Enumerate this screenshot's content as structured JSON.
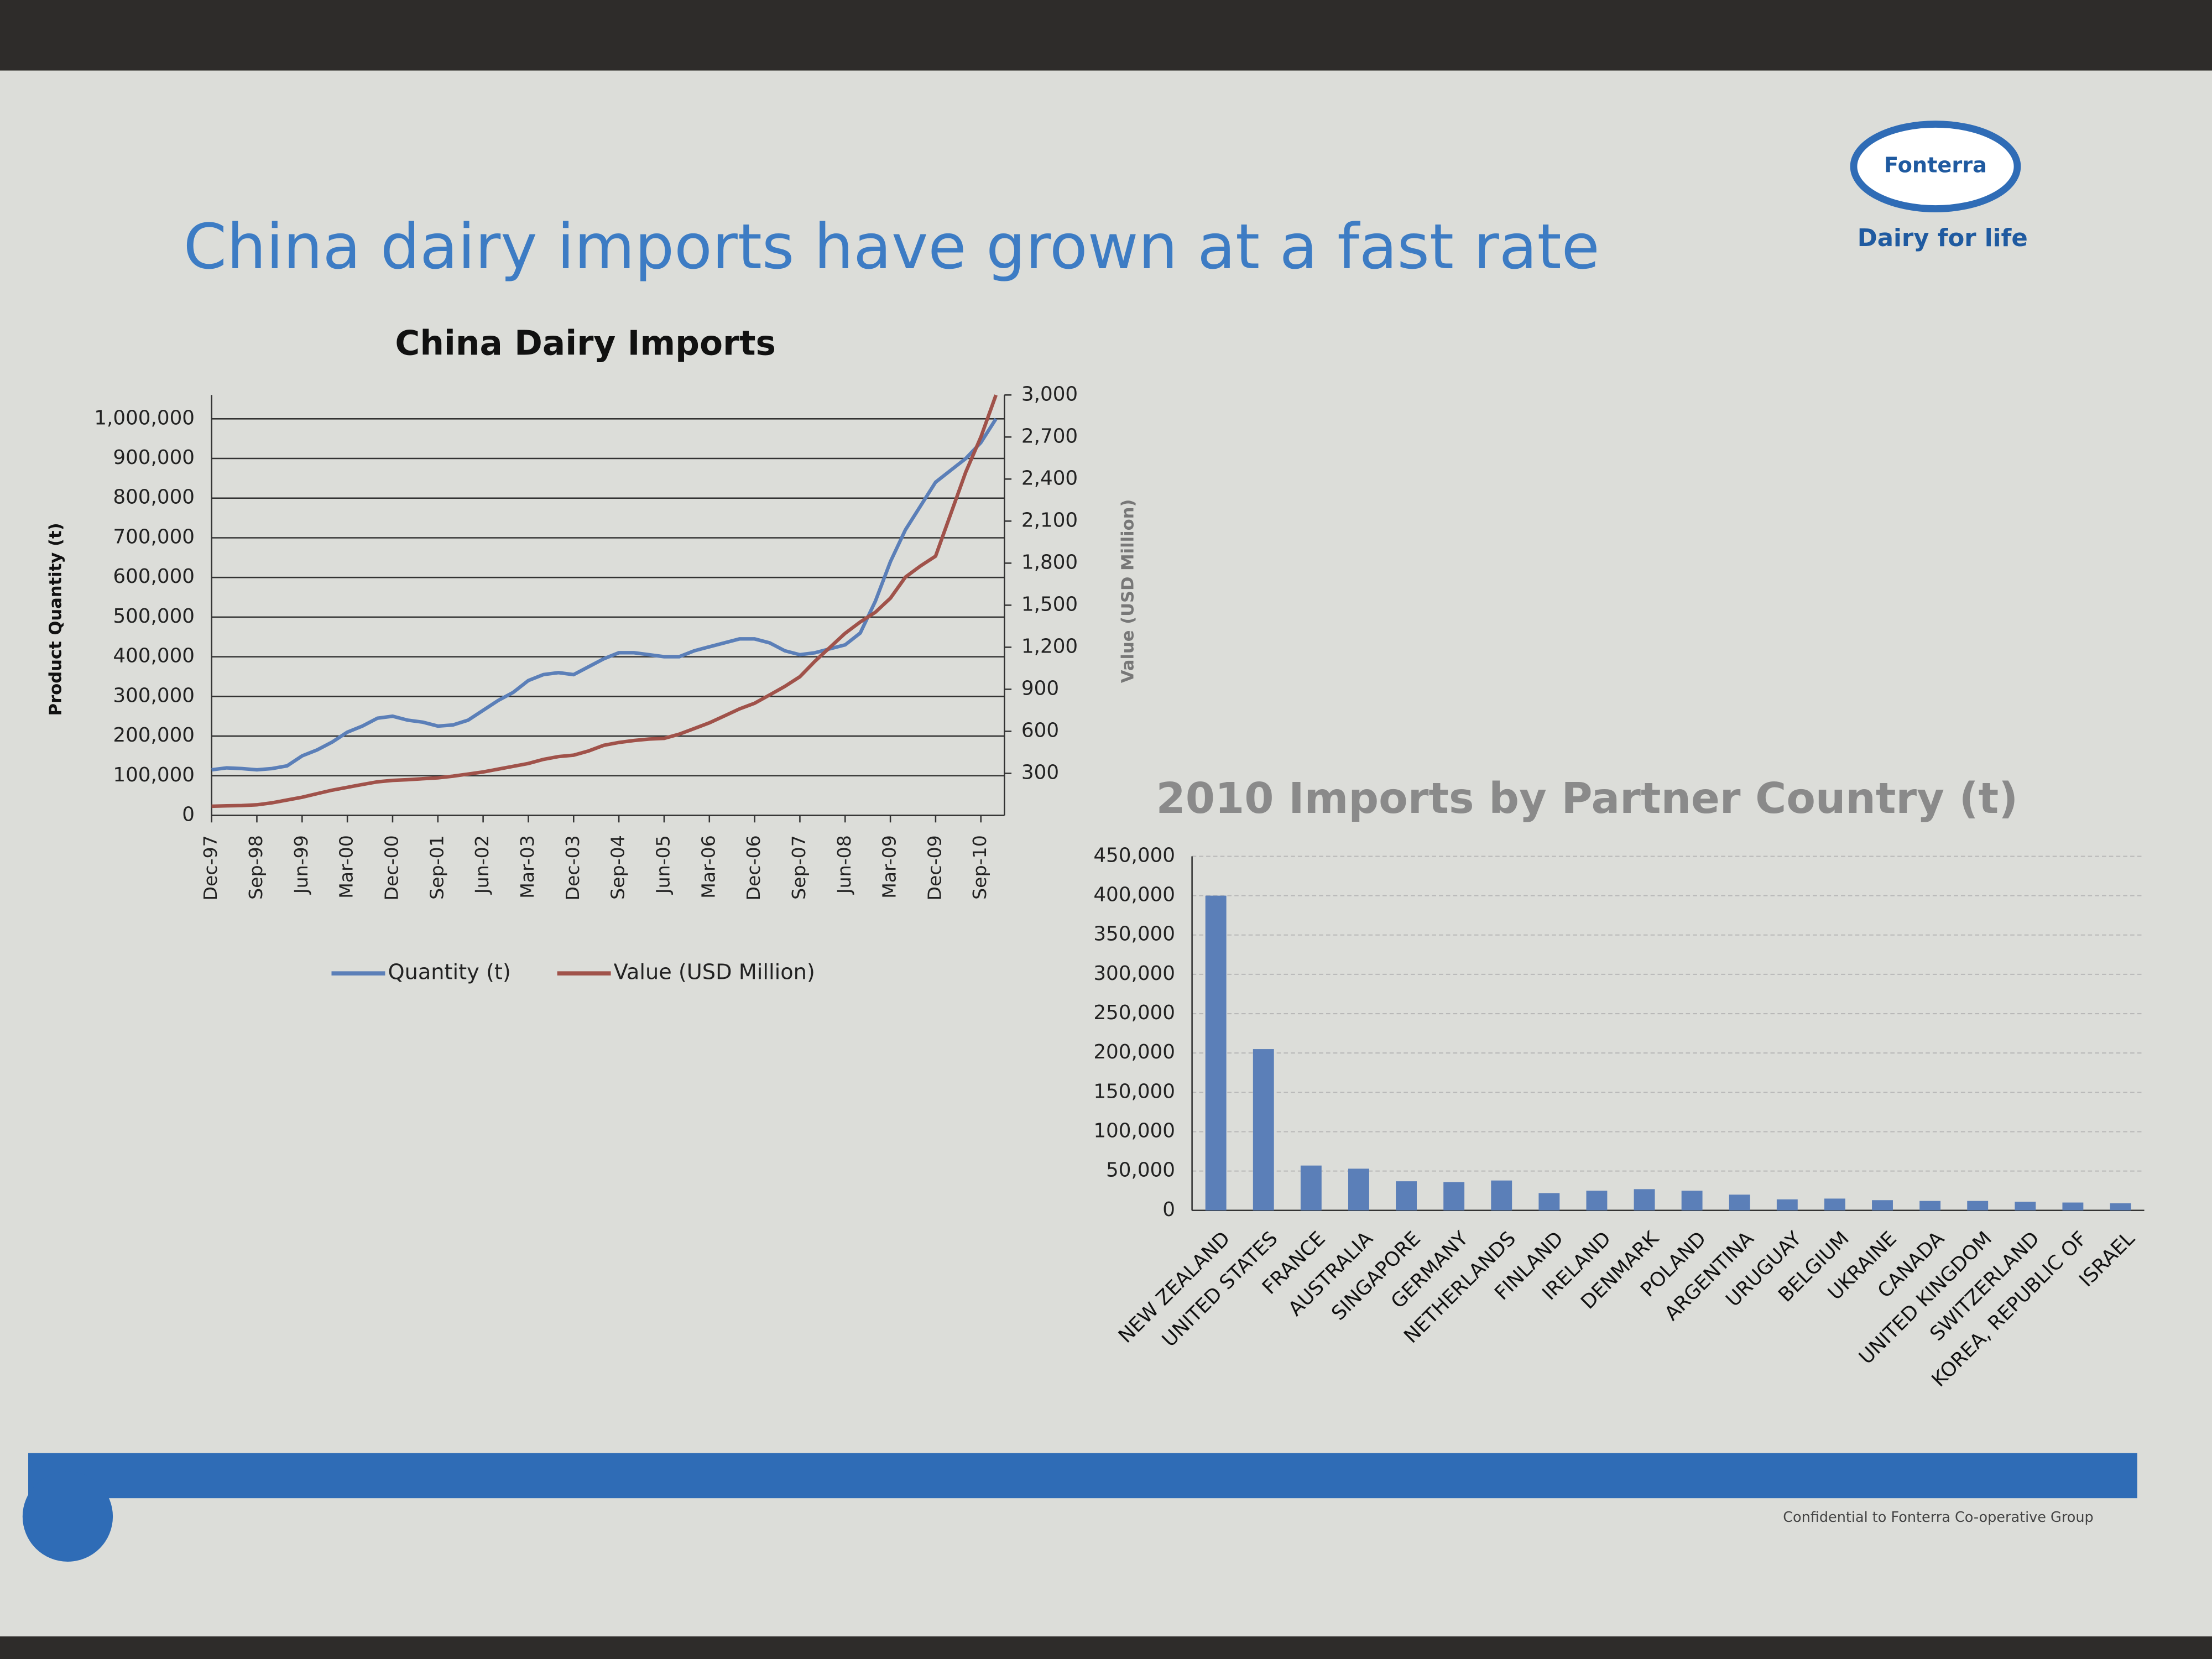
{
  "header": {
    "title": "China dairy imports have grown at a fast rate",
    "logo": "Fonterra",
    "tagline": "Dairy for life"
  },
  "chart_data": [
    {
      "type": "line",
      "title": "China Dairy Imports",
      "y_label": "Product Quantity (t)",
      "y2_label": "Value (USD Million)",
      "categories": [
        "Dec-97",
        null,
        null,
        "Sep-98",
        null,
        null,
        "Jun-99",
        null,
        null,
        "Mar-00",
        null,
        null,
        "Dec-00",
        null,
        null,
        "Sep-01",
        null,
        null,
        "Jun-02",
        null,
        null,
        "Mar-03",
        null,
        null,
        "Dec-03",
        null,
        null,
        "Sep-04",
        null,
        null,
        "Jun-05",
        null,
        null,
        "Mar-06",
        null,
        null,
        "Dec-06",
        null,
        null,
        "Sep-07",
        null,
        null,
        "Jun-08",
        null,
        null,
        "Mar-09",
        null,
        null,
        "Dec-09",
        null,
        null,
        "Sep-10",
        null
      ],
      "series": [
        {
          "name": "Quantity (t)",
          "color": "#5b7fb8",
          "values": [
            115000,
            120000,
            118000,
            115000,
            118000,
            125000,
            150000,
            165000,
            185000,
            210000,
            225000,
            245000,
            250000,
            240000,
            235000,
            225000,
            228000,
            240000,
            265000,
            290000,
            310000,
            340000,
            355000,
            360000,
            355000,
            375000,
            395000,
            410000,
            410000,
            405000,
            400000,
            400000,
            415000,
            425000,
            435000,
            445000,
            445000,
            435000,
            415000,
            405000,
            410000,
            420000,
            430000,
            460000,
            540000,
            640000,
            720000,
            780000,
            840000,
            870000,
            900000,
            940000,
            1000000
          ]
        },
        {
          "name": "Value (USD Million)",
          "color": "#a0524a",
          "axis": "y2",
          "values": [
            65,
            68,
            70,
            75,
            90,
            110,
            130,
            155,
            180,
            200,
            220,
            240,
            250,
            255,
            262,
            268,
            280,
            295,
            310,
            330,
            350,
            370,
            400,
            420,
            430,
            460,
            500,
            520,
            535,
            545,
            550,
            580,
            620,
            660,
            710,
            760,
            800,
            860,
            920,
            990,
            1100,
            1200,
            1300,
            1380,
            1450,
            1550,
            1700,
            1780,
            1850,
            2150,
            2450,
            2700,
            3000
          ]
        }
      ],
      "ylim": [
        0,
        1060000
      ],
      "yticks": [
        0,
        {
          "value": 100000,
          "label": "100,000"
        },
        {
          "value": 200000,
          "label": "200,000"
        },
        {
          "value": 300000,
          "label": "300,000"
        },
        {
          "value": 400000,
          "label": "400,000"
        },
        {
          "value": 500000,
          "label": "500,000"
        },
        {
          "value": 600000,
          "label": "600,000"
        },
        {
          "value": 700000,
          "label": "700,000"
        },
        {
          "value": 800000,
          "label": "800,000"
        },
        {
          "value": 900000,
          "label": "900,000"
        },
        {
          "value": 1000000,
          "label": "1,000,000"
        }
      ],
      "y2lim": [
        0,
        3000
      ],
      "y2ticks": [
        300,
        600,
        900,
        {
          "value": 1200,
          "label": "1,200"
        },
        {
          "value": 1500,
          "label": "1,500"
        },
        {
          "value": 1800,
          "label": "1,800"
        },
        {
          "value": 2100,
          "label": "2,100"
        },
        {
          "value": 2400,
          "label": "2,400"
        },
        {
          "value": 2700,
          "label": "2,700"
        },
        {
          "value": 3000,
          "label": "3,000"
        }
      ],
      "grid": true,
      "legend": "bottom"
    },
    {
      "type": "bar",
      "title": "2010 Imports by Partner Country (t)",
      "color": "#5b7fb8",
      "categories": [
        "NEW ZEALAND",
        "UNITED STATES",
        "FRANCE",
        "AUSTRALIA",
        "SINGAPORE",
        "GERMANY",
        "NETHERLANDS",
        "FINLAND",
        "IRELAND",
        "DENMARK",
        "POLAND",
        "ARGENTINA",
        "URUGUAY",
        "BELGIUM",
        "UKRAINE",
        "CANADA",
        "UNITED KINGDOM",
        "SWITZERLAND",
        "KOREA, REPUBLIC OF",
        "ISRAEL"
      ],
      "values": [
        400000,
        205000,
        57000,
        53000,
        37000,
        36000,
        38000,
        22000,
        25000,
        27000,
        25000,
        20000,
        14000,
        15000,
        13000,
        12000,
        12000,
        11000,
        10000,
        9000
      ],
      "ylim": [
        0,
        450000
      ],
      "yticks": [
        0,
        {
          "value": 50000,
          "label": "50,000"
        },
        {
          "value": 100000,
          "label": "100,000"
        },
        {
          "value": 150000,
          "label": "150,000"
        },
        {
          "value": 200000,
          "label": "200,000"
        },
        {
          "value": 250000,
          "label": "250,000"
        },
        {
          "value": 300000,
          "label": "300,000"
        },
        {
          "value": 350000,
          "label": "350,000"
        },
        {
          "value": 400000,
          "label": "400,000"
        },
        {
          "value": 450000,
          "label": "450,000"
        }
      ],
      "grid": true
    }
  ],
  "footer": "Confidential to Fonterra Co-operative Group"
}
